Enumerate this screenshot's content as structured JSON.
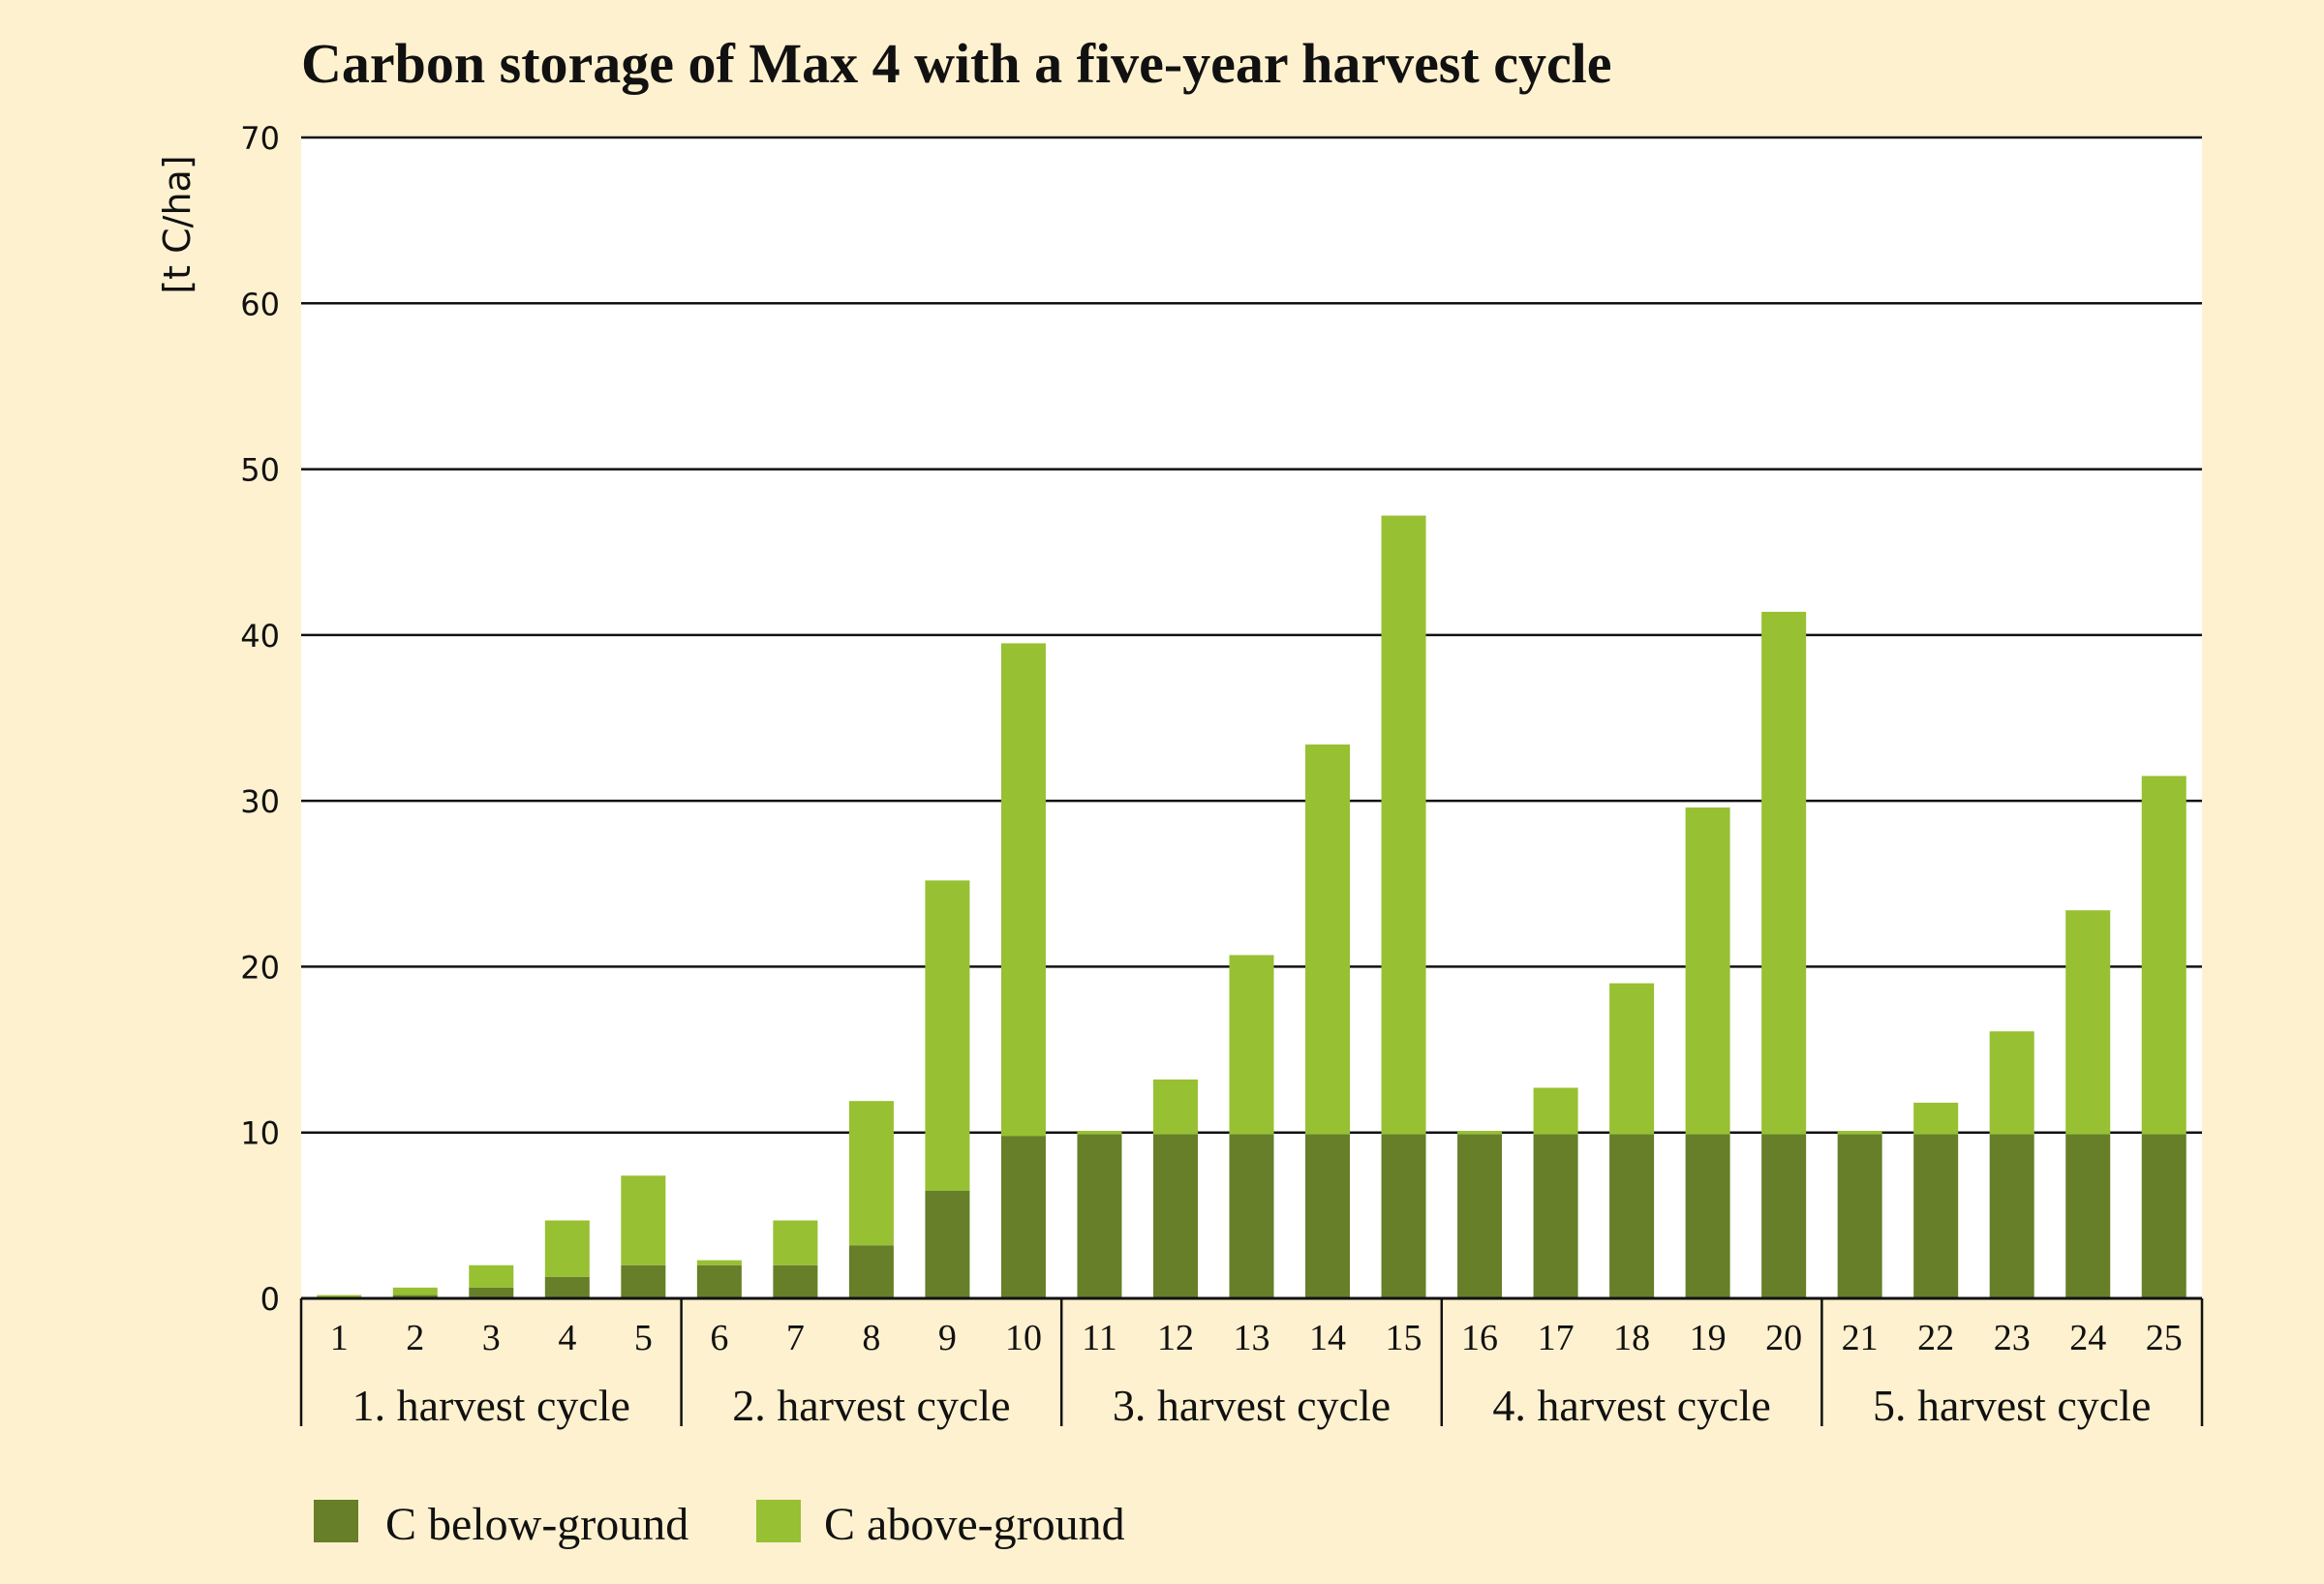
{
  "chart_data": {
    "type": "bar",
    "stacked": true,
    "title": "Carbon storage of Max 4 with a five-year harvest cycle",
    "xlabel": "",
    "ylabel": "[t C/ha]",
    "ylim": [
      0,
      70
    ],
    "yticks": [
      0,
      10,
      20,
      30,
      40,
      50,
      60,
      70
    ],
    "grid": true,
    "legend_position": "bottom-left",
    "categories": [
      "1",
      "2",
      "3",
      "4",
      "5",
      "6",
      "7",
      "8",
      "9",
      "10",
      "11",
      "12",
      "13",
      "14",
      "15",
      "16",
      "17",
      "18",
      "19",
      "20",
      "21",
      "22",
      "23",
      "24",
      "25"
    ],
    "groups": [
      {
        "label": "1. harvest cycle",
        "categories": [
          "1",
          "2",
          "3",
          "4",
          "5"
        ]
      },
      {
        "label": "2. harvest cycle",
        "categories": [
          "6",
          "7",
          "8",
          "9",
          "10"
        ]
      },
      {
        "label": "3. harvest cycle",
        "categories": [
          "11",
          "12",
          "13",
          "14",
          "15"
        ]
      },
      {
        "label": "4. harvest cycle",
        "categories": [
          "16",
          "17",
          "18",
          "19",
          "20"
        ]
      },
      {
        "label": "5. harvest cycle",
        "categories": [
          "21",
          "22",
          "23",
          "24",
          "25"
        ]
      }
    ],
    "series": [
      {
        "name": "C below-ground",
        "color": "#667f28",
        "values": [
          0.05,
          0.2,
          0.65,
          1.3,
          2.0,
          2.0,
          2.0,
          3.2,
          6.5,
          9.8,
          9.9,
          9.9,
          9.9,
          9.9,
          9.9,
          9.9,
          9.9,
          9.9,
          9.9,
          9.9,
          9.9,
          9.9,
          9.9,
          9.9,
          9.9
        ]
      },
      {
        "name": "C above-ground",
        "color": "#97c032",
        "values": [
          0.15,
          0.45,
          1.35,
          3.4,
          5.4,
          0.3,
          2.7,
          8.7,
          18.7,
          29.7,
          0.2,
          3.3,
          10.8,
          23.5,
          37.3,
          0.2,
          2.8,
          9.1,
          19.7,
          31.5,
          0.2,
          1.9,
          6.2,
          13.5,
          21.6
        ]
      }
    ],
    "totals": [
      0.2,
      0.65,
      2.0,
      4.7,
      7.4,
      2.3,
      4.7,
      11.9,
      25.2,
      39.5,
      10.1,
      13.2,
      20.7,
      33.4,
      47.2,
      10.1,
      12.7,
      19.0,
      29.6,
      41.4,
      10.1,
      11.8,
      16.1,
      23.4,
      31.5
    ]
  },
  "colors": {
    "background": "#fef1cf",
    "plot_background": "#ffffff",
    "below_ground": "#667f28",
    "above_ground": "#97c032",
    "lines": "#111111"
  }
}
